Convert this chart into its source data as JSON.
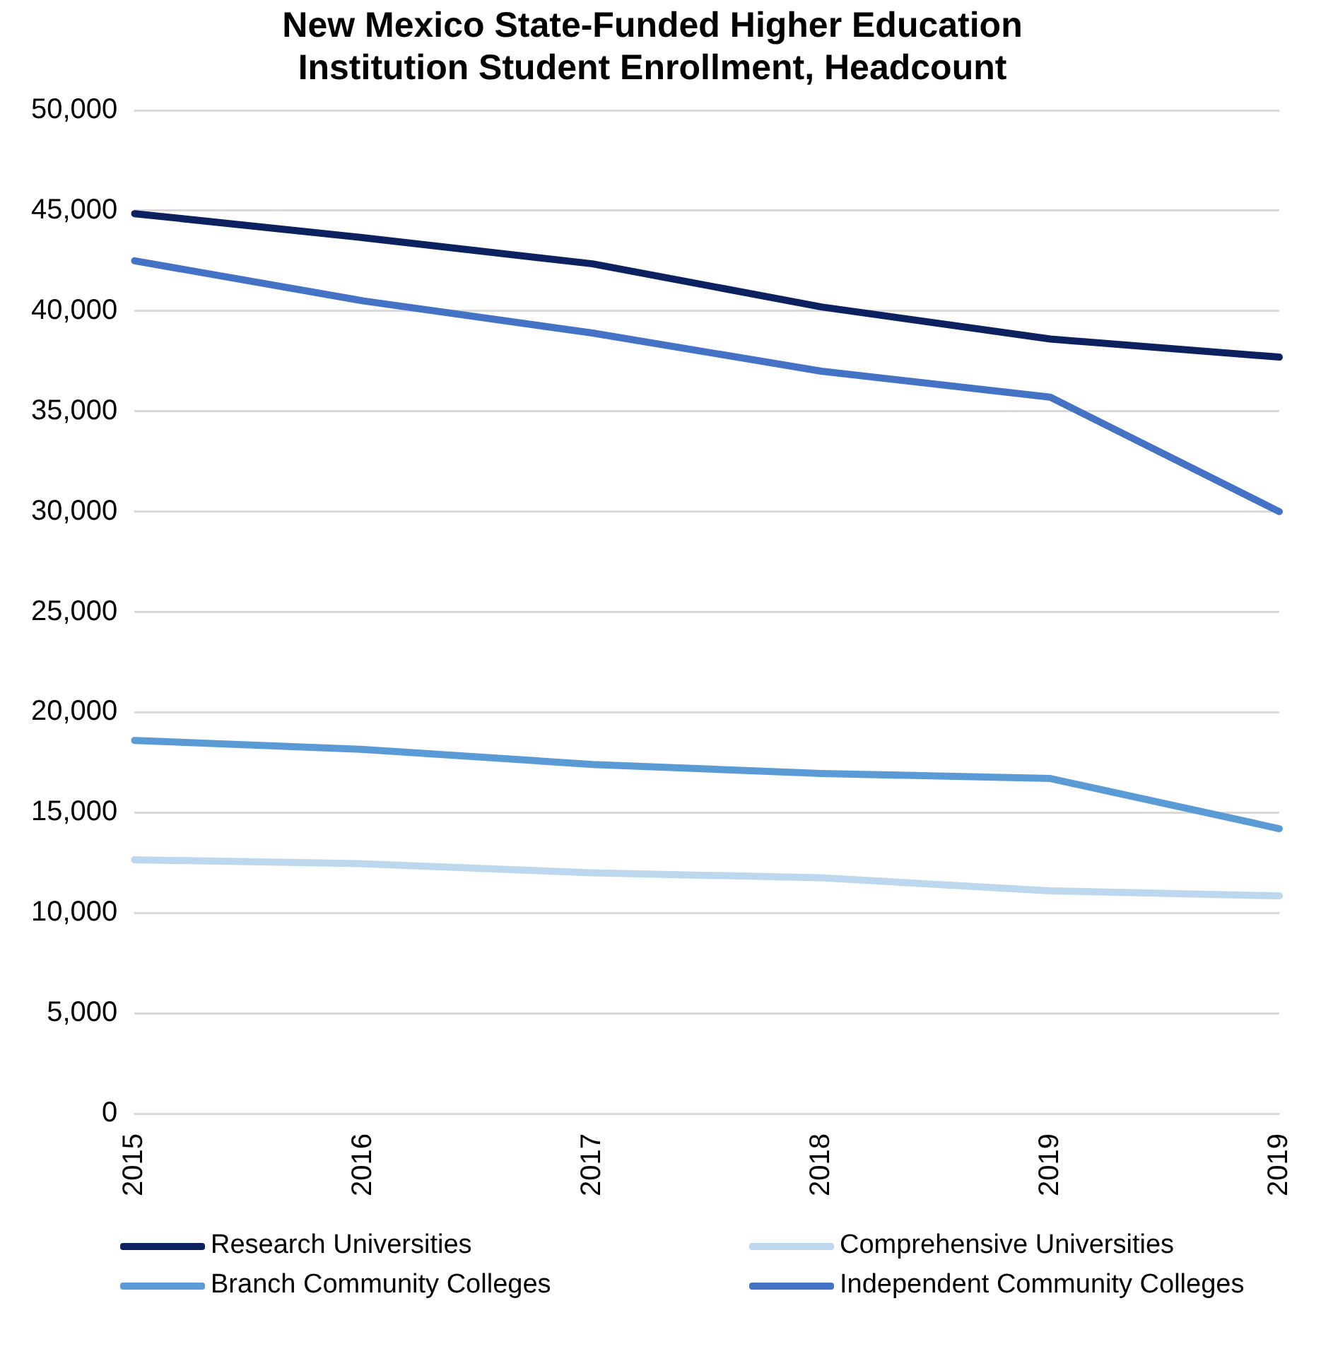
{
  "chart_data": {
    "type": "line",
    "title": "New Mexico State-Funded Higher Education Institution Student Enrollment, Headcount",
    "categories": [
      "2015",
      "2016",
      "2017",
      "2018",
      "2019",
      "2019"
    ],
    "series": [
      {
        "name": "Research Universities",
        "color": "#0b2160",
        "values": [
          44850,
          43650,
          42350,
          40200,
          38600,
          37700
        ]
      },
      {
        "name": "Comprehensive Universities",
        "color": "#bdd7ee",
        "values": [
          12650,
          12450,
          12000,
          11750,
          11100,
          10850
        ]
      },
      {
        "name": "Branch Community Colleges",
        "color": "#5b9bd5",
        "values": [
          18600,
          18150,
          17400,
          16950,
          16700,
          14200
        ]
      },
      {
        "name": "Independent Community Colleges",
        "color": "#4472c4",
        "values": [
          42500,
          40500,
          38900,
          37000,
          35700,
          30000
        ]
      }
    ],
    "ylim": [
      0,
      50000
    ],
    "yticks": [
      0,
      {
        "value": 5000,
        "label": "5,000"
      },
      {
        "value": 10000,
        "label": "10,000"
      },
      {
        "value": 15000,
        "label": "15,000"
      },
      {
        "value": 20000,
        "label": "20,000"
      },
      {
        "value": 25000,
        "label": "25,000"
      },
      {
        "value": 30000,
        "label": "30,000"
      },
      {
        "value": 35000,
        "label": "35,000"
      },
      {
        "value": 40000,
        "label": "40,000"
      },
      {
        "value": 45000,
        "label": "45,000"
      },
      {
        "value": 50000,
        "label": "50,000"
      }
    ],
    "grid": "y",
    "legend": "bottom"
  }
}
